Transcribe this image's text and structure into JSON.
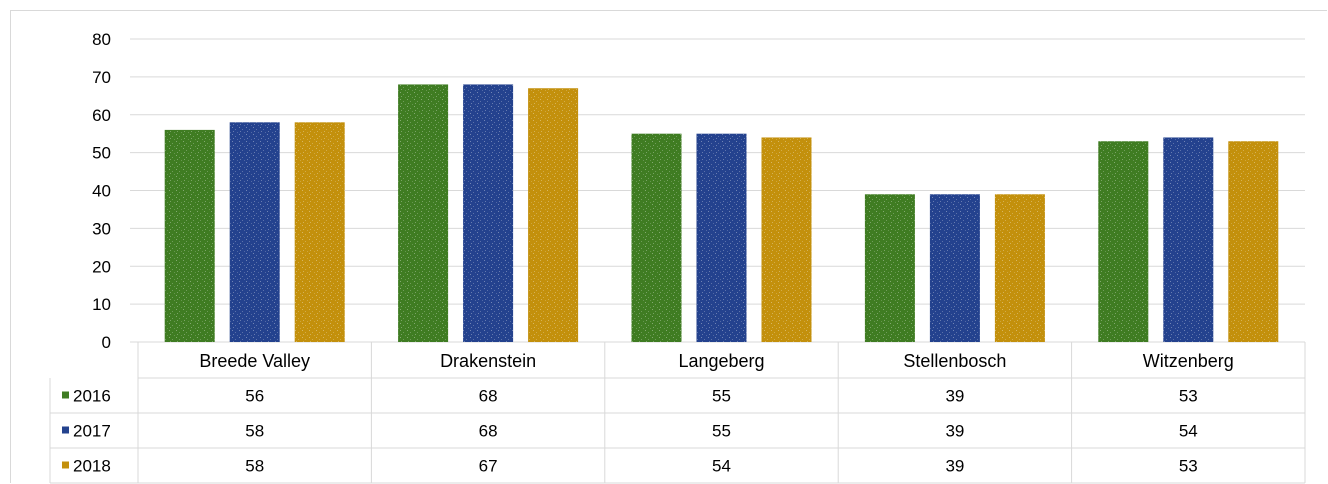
{
  "chart_data": {
    "type": "bar",
    "title": "",
    "xlabel": "",
    "ylabel": "",
    "ylim": [
      0,
      80
    ],
    "yticks": [
      0,
      10,
      20,
      30,
      40,
      50,
      60,
      70,
      80
    ],
    "grid": true,
    "legend": "data-table-left",
    "categories": [
      "Breede Valley",
      "Drakenstein",
      "Langeberg",
      "Stellenbosch",
      "Witzenberg"
    ],
    "series": [
      {
        "name": "2016",
        "color": "#3f7c22",
        "values": [
          56,
          68,
          55,
          39,
          53
        ]
      },
      {
        "name": "2017",
        "color": "#24428e",
        "values": [
          58,
          68,
          55,
          39,
          54
        ]
      },
      {
        "name": "2018",
        "color": "#c3900c",
        "values": [
          58,
          67,
          54,
          39,
          53
        ]
      }
    ]
  }
}
